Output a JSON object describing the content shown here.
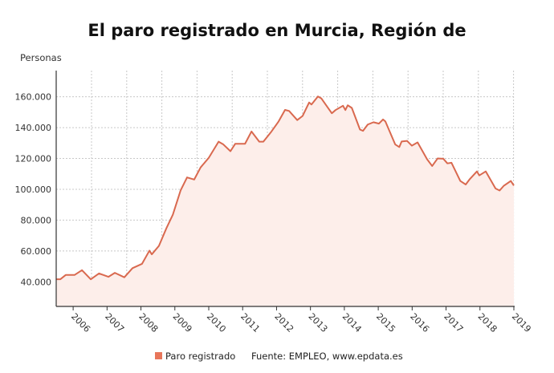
{
  "chart_data": {
    "type": "area",
    "title": "El paro registrado en Murcia, Región de",
    "ylabel": "Personas",
    "xlabel": "",
    "ylim": [
      24000,
      177000
    ],
    "xlim": [
      2005.5,
      2019.0
    ],
    "yticks": [
      40000,
      60000,
      80000,
      100000,
      120000,
      140000,
      160000
    ],
    "ytick_labels": [
      "40.000",
      "60.000",
      "80.000",
      "100.000",
      "120.000",
      "140.000",
      "160.000"
    ],
    "xticks": [
      2006,
      2007,
      2008,
      2009,
      2010,
      2011,
      2012,
      2013,
      2014,
      2015,
      2016,
      2017,
      2018,
      2019
    ],
    "xtick_labels": [
      "2006",
      "2007",
      "2008",
      "2009",
      "2010",
      "2011",
      "2012",
      "2013",
      "2014",
      "2015",
      "2016",
      "2017",
      "2018",
      "2019"
    ],
    "grid": true,
    "legend_position": "bottom",
    "colors": {
      "line": "#d9694f",
      "fill": "#fdeeea",
      "legend": "#e8765a",
      "grid": "#c8c8c8"
    },
    "series": [
      {
        "name": "Paro registrado",
        "x": [
          2005.5,
          2005.62,
          2005.78,
          2006.04,
          2006.26,
          2006.52,
          2006.76,
          2007.04,
          2007.23,
          2007.51,
          2007.75,
          2008.03,
          2008.25,
          2008.32,
          2008.53,
          2008.75,
          2008.94,
          2009.17,
          2009.36,
          2009.57,
          2009.76,
          2010.0,
          2010.29,
          2010.43,
          2010.64,
          2010.78,
          2011.07,
          2011.26,
          2011.49,
          2011.61,
          2011.83,
          2012.06,
          2012.25,
          2012.37,
          2012.61,
          2012.77,
          2012.96,
          2013.03,
          2013.22,
          2013.32,
          2013.63,
          2013.74,
          2013.96,
          2014.03,
          2014.1,
          2014.22,
          2014.46,
          2014.55,
          2014.69,
          2014.86,
          2015.02,
          2015.14,
          2015.21,
          2015.5,
          2015.62,
          2015.69,
          2015.85,
          2015.99,
          2016.16,
          2016.44,
          2016.59,
          2016.75,
          2016.92,
          2017.04,
          2017.16,
          2017.42,
          2017.58,
          2017.7,
          2017.91,
          2017.98,
          2018.17,
          2018.46,
          2018.58,
          2018.7,
          2018.91,
          2019.0
        ],
        "values": [
          41600,
          41600,
          44400,
          44400,
          47500,
          41600,
          45400,
          43200,
          45800,
          42900,
          48800,
          51600,
          60200,
          57800,
          63300,
          74700,
          83500,
          99300,
          107700,
          106300,
          114200,
          120400,
          130900,
          129100,
          124700,
          129500,
          129500,
          137500,
          130900,
          130900,
          136900,
          144000,
          151500,
          150800,
          144900,
          147600,
          156300,
          155000,
          160200,
          159000,
          149300,
          151400,
          154200,
          151400,
          154500,
          152800,
          138800,
          137900,
          142000,
          143500,
          142600,
          145300,
          144000,
          129100,
          127400,
          131000,
          131400,
          128300,
          130400,
          119500,
          115100,
          120000,
          119800,
          116800,
          117200,
          105400,
          103100,
          106600,
          111600,
          109000,
          111600,
          100500,
          99200,
          102200,
          105400,
          102400
        ]
      }
    ],
    "legend": {
      "label": "Paro registrado"
    },
    "source": "Fuente: EMPLEO, www.epdata.es"
  }
}
